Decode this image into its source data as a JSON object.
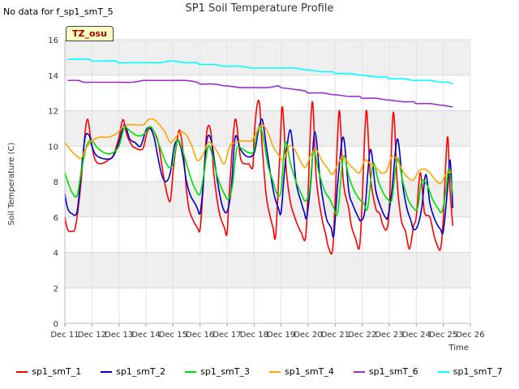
{
  "note": "No data for f_sp1_smT_5",
  "badge": "TZ_osu",
  "chart_data": {
    "type": "line",
    "title": "SP1 Soil Temperature Profile",
    "xlabel": "Time",
    "ylabel": "Soil Temperature (C)",
    "ylim": [
      0,
      16
    ],
    "yticks": [
      0,
      2,
      4,
      6,
      8,
      10,
      12,
      14,
      16
    ],
    "xlim": [
      11,
      26
    ],
    "xticks": [
      11,
      12,
      13,
      14,
      15,
      16,
      17,
      18,
      19,
      20,
      21,
      22,
      23,
      24,
      25,
      26
    ],
    "xtick_labels": [
      "Dec 11",
      "Dec 12",
      "Dec 13",
      "Dec 14",
      "Dec 15",
      "Dec 16",
      "Dec 17",
      "Dec 18",
      "Dec 19",
      "Dec 20",
      "Dec 21",
      "Dec 22",
      "Dec 23",
      "Dec 24",
      "Dec 25",
      "Dec 26"
    ],
    "grid": true,
    "legend_position": "bottom",
    "series": [
      {
        "name": "sp1_smT_1",
        "color": "#ff0000",
        "x": [
          11.0,
          11.1,
          11.25,
          11.4,
          11.6,
          11.75,
          11.85,
          11.95,
          12.1,
          12.3,
          12.6,
          12.8,
          13.0,
          13.15,
          13.3,
          13.5,
          13.6,
          13.75,
          13.9,
          14.05,
          14.2,
          14.4,
          14.5,
          14.6,
          14.75,
          14.9,
          15.0,
          15.1,
          15.25,
          15.4,
          15.5,
          15.6,
          15.75,
          15.9,
          16.0,
          16.1,
          16.25,
          16.4,
          16.5,
          16.65,
          16.75,
          16.9,
          17.0,
          17.1,
          17.3,
          17.5,
          17.7,
          17.8,
          17.95,
          18.0,
          18.1,
          18.2,
          18.3,
          18.45,
          18.6,
          18.7,
          18.8,
          18.95,
          19.05,
          19.2,
          19.35,
          19.5,
          19.65,
          19.75,
          19.9,
          20.0,
          20.15,
          20.3,
          20.5,
          20.65,
          20.75,
          20.9,
          21.0,
          21.15,
          21.3,
          21.5,
          21.6,
          21.75,
          21.9,
          22.0,
          22.15,
          22.3,
          22.5,
          22.65,
          22.75,
          22.9,
          23.0,
          23.15,
          23.3,
          23.45,
          23.6,
          23.75,
          23.9,
          24.0,
          24.15,
          24.3,
          24.5,
          24.65,
          24.75,
          24.9,
          25.0,
          25.15,
          25.25,
          25.35
        ],
        "values": [
          6.0,
          5.3,
          5.2,
          5.5,
          8.0,
          10.8,
          11.5,
          10.5,
          9.3,
          9.0,
          9.2,
          9.5,
          10.5,
          11.5,
          10.6,
          10.0,
          9.9,
          9.8,
          9.9,
          10.8,
          11.0,
          10.5,
          9.8,
          8.8,
          7.5,
          6.9,
          8.5,
          9.8,
          10.9,
          9.3,
          7.5,
          6.4,
          5.8,
          5.4,
          5.3,
          7.3,
          10.8,
          10.8,
          8.6,
          6.8,
          6.0,
          5.4,
          5.1,
          7.8,
          11.5,
          9.3,
          9.0,
          9.0,
          8.8,
          10.5,
          12.2,
          12.4,
          10.0,
          7.2,
          6.0,
          5.4,
          5.0,
          9.5,
          12.2,
          8.5,
          6.8,
          6.0,
          5.4,
          5.1,
          4.8,
          7.5,
          12.5,
          8.2,
          6.0,
          5.0,
          4.3,
          4.1,
          7.0,
          12.0,
          8.0,
          6.5,
          5.5,
          4.8,
          4.3,
          7.0,
          12.0,
          8.3,
          6.5,
          6.2,
          5.6,
          5.3,
          6.5,
          11.9,
          7.8,
          5.8,
          5.2,
          4.2,
          5.5,
          6.0,
          8.5,
          6.3,
          6.0,
          5.0,
          4.5,
          4.2,
          6.0,
          10.5,
          7.5,
          5.5
        ]
      },
      {
        "name": "sp1_smT_2",
        "color": "#0000cc",
        "x": [
          11.0,
          11.1,
          11.25,
          11.45,
          11.6,
          11.75,
          11.9,
          12.0,
          12.15,
          12.4,
          12.7,
          12.85,
          13.0,
          13.2,
          13.4,
          13.6,
          13.8,
          14.0,
          14.15,
          14.3,
          14.45,
          14.6,
          14.75,
          14.9,
          15.05,
          15.2,
          15.35,
          15.5,
          15.65,
          15.8,
          15.9,
          16.0,
          16.1,
          16.25,
          16.4,
          16.55,
          16.7,
          16.85,
          17.0,
          17.15,
          17.3,
          17.5,
          17.75,
          18.0,
          18.15,
          18.3,
          18.45,
          18.6,
          18.75,
          18.9,
          19.0,
          19.15,
          19.35,
          19.55,
          19.75,
          19.85,
          19.95,
          20.1,
          20.25,
          20.45,
          20.6,
          20.7,
          20.85,
          20.95,
          21.1,
          21.3,
          21.5,
          21.65,
          21.85,
          21.95,
          22.1,
          22.3,
          22.5,
          22.7,
          22.85,
          22.95,
          23.1,
          23.3,
          23.5,
          23.65,
          23.8,
          23.9,
          24.05,
          24.2,
          24.35,
          24.5,
          24.65,
          24.8,
          24.9,
          25.0,
          25.15,
          25.25,
          25.35
        ],
        "values": [
          7.3,
          6.5,
          6.2,
          6.3,
          8.5,
          10.5,
          10.6,
          10.0,
          9.5,
          9.3,
          9.3,
          9.6,
          10.2,
          11.2,
          10.4,
          10.2,
          10.0,
          10.9,
          11.0,
          10.5,
          9.3,
          8.3,
          8.0,
          8.5,
          10.0,
          10.3,
          9.5,
          8.0,
          7.2,
          6.8,
          6.5,
          6.2,
          7.5,
          10.3,
          10.4,
          9.0,
          7.5,
          6.5,
          6.3,
          7.5,
          10.5,
          9.8,
          9.4,
          9.6,
          10.8,
          11.5,
          10.0,
          8.5,
          7.2,
          6.5,
          6.3,
          9.0,
          10.9,
          8.0,
          6.8,
          6.3,
          6.0,
          8.0,
          10.8,
          8.0,
          6.5,
          5.8,
          5.4,
          5.0,
          8.0,
          10.5,
          7.5,
          6.7,
          6.0,
          5.8,
          6.4,
          9.8,
          7.5,
          6.5,
          6.0,
          6.0,
          7.5,
          10.4,
          7.8,
          6.5,
          5.8,
          5.3,
          5.5,
          6.5,
          8.4,
          6.8,
          6.0,
          5.5,
          5.3,
          5.2,
          7.5,
          9.2,
          6.5
        ]
      },
      {
        "name": "sp1_smT_3",
        "color": "#00dd00",
        "x": [
          11.0,
          11.15,
          11.3,
          11.45,
          11.6,
          11.8,
          12.0,
          12.2,
          12.5,
          12.75,
          13.0,
          13.2,
          13.45,
          13.65,
          13.85,
          14.0,
          14.15,
          14.3,
          14.5,
          14.7,
          14.85,
          15.0,
          15.15,
          15.3,
          15.5,
          15.7,
          15.85,
          16.0,
          16.15,
          16.3,
          16.45,
          16.6,
          16.75,
          16.9,
          17.05,
          17.2,
          17.35,
          17.5,
          17.7,
          17.9,
          18.0,
          18.15,
          18.3,
          18.5,
          18.7,
          18.85,
          19.0,
          19.15,
          19.35,
          19.55,
          19.75,
          19.9,
          20.05,
          20.2,
          20.4,
          20.6,
          20.8,
          20.95,
          21.1,
          21.3,
          21.5,
          21.7,
          21.9,
          22.05,
          22.2,
          22.4,
          22.6,
          22.8,
          22.95,
          23.1,
          23.3,
          23.5,
          23.7,
          23.9,
          24.05,
          24.2,
          24.4,
          24.6,
          24.8,
          24.95,
          25.1,
          25.2,
          25.35
        ],
        "values": [
          8.5,
          7.8,
          7.3,
          7.2,
          8.5,
          10.0,
          10.3,
          9.9,
          9.6,
          9.6,
          10.0,
          11.0,
          10.8,
          10.6,
          10.6,
          10.8,
          11.1,
          10.8,
          10.0,
          9.2,
          8.8,
          9.0,
          10.3,
          10.0,
          9.0,
          8.0,
          7.5,
          7.3,
          8.5,
          10.0,
          9.5,
          8.5,
          7.8,
          7.3,
          7.0,
          7.8,
          9.8,
          9.9,
          9.7,
          9.6,
          9.8,
          11.0,
          10.8,
          9.0,
          8.0,
          7.3,
          7.5,
          10.2,
          9.0,
          8.0,
          7.3,
          6.9,
          7.5,
          9.7,
          8.5,
          7.5,
          7.0,
          6.5,
          6.3,
          9.4,
          8.3,
          7.5,
          7.0,
          6.8,
          6.5,
          9.0,
          8.0,
          7.3,
          7.0,
          7.0,
          9.3,
          8.0,
          7.0,
          6.5,
          6.5,
          8.0,
          7.8,
          7.0,
          6.5,
          6.3,
          7.5,
          8.7,
          7.3
        ]
      },
      {
        "name": "sp1_smT_4",
        "color": "#ffa500",
        "x": [
          11.0,
          11.2,
          11.4,
          11.6,
          11.75,
          12.0,
          12.3,
          12.6,
          12.9,
          13.1,
          13.3,
          13.6,
          13.9,
          14.1,
          14.3,
          14.5,
          14.7,
          14.9,
          15.1,
          15.3,
          15.5,
          15.7,
          15.9,
          16.1,
          16.3,
          16.5,
          16.7,
          16.9,
          17.1,
          17.3,
          17.6,
          17.9,
          18.1,
          18.3,
          18.5,
          18.7,
          18.9,
          19.1,
          19.3,
          19.5,
          19.7,
          19.9,
          20.1,
          20.3,
          20.5,
          20.7,
          20.9,
          21.1,
          21.3,
          21.5,
          21.7,
          21.9,
          22.1,
          22.3,
          22.5,
          22.7,
          22.9,
          23.1,
          23.3,
          23.5,
          23.7,
          23.9,
          24.1,
          24.3,
          24.5,
          24.7,
          24.9,
          25.1,
          25.35
        ],
        "values": [
          10.2,
          9.8,
          9.5,
          9.3,
          9.8,
          10.3,
          10.5,
          10.5,
          10.7,
          11.0,
          11.2,
          11.2,
          11.2,
          11.5,
          11.5,
          11.2,
          10.8,
          10.2,
          10.5,
          10.8,
          10.6,
          10.0,
          9.2,
          9.5,
          10.2,
          10.0,
          9.5,
          9.0,
          10.0,
          10.2,
          10.3,
          10.3,
          10.8,
          11.2,
          10.8,
          10.0,
          9.5,
          9.2,
          10.0,
          9.8,
          9.2,
          8.8,
          9.5,
          9.8,
          9.2,
          8.8,
          8.4,
          9.0,
          9.4,
          9.0,
          8.7,
          8.5,
          9.2,
          9.0,
          8.8,
          8.5,
          8.6,
          9.4,
          9.2,
          8.6,
          8.2,
          8.1,
          8.6,
          8.7,
          8.5,
          8.1,
          7.9,
          8.4,
          8.6
        ]
      },
      {
        "name": "sp1_smT_6",
        "color": "#9b30d0",
        "x": [
          11.1,
          11.5,
          11.7,
          12.0,
          12.5,
          13.0,
          13.5,
          13.9,
          14.0,
          14.5,
          15.0,
          15.5,
          15.9,
          16.0,
          16.5,
          16.9,
          17.0,
          17.5,
          18.0,
          18.5,
          18.9,
          19.0,
          19.5,
          19.9,
          20.0,
          20.5,
          20.9,
          21.0,
          21.5,
          21.9,
          22.0,
          22.5,
          22.9,
          23.0,
          23.5,
          23.9,
          24.0,
          24.5,
          24.9,
          25.0,
          25.35
        ],
        "values": [
          13.7,
          13.7,
          13.6,
          13.6,
          13.6,
          13.6,
          13.6,
          13.7,
          13.7,
          13.7,
          13.7,
          13.7,
          13.6,
          13.5,
          13.5,
          13.4,
          13.4,
          13.3,
          13.3,
          13.3,
          13.4,
          13.3,
          13.2,
          13.1,
          13.0,
          13.0,
          12.9,
          12.9,
          12.8,
          12.8,
          12.7,
          12.7,
          12.6,
          12.6,
          12.5,
          12.5,
          12.4,
          12.4,
          12.3,
          12.3,
          12.2
        ]
      },
      {
        "name": "sp1_smT_7",
        "color": "#00ffff",
        "x": [
          11.1,
          11.5,
          11.9,
          12.0,
          12.5,
          12.9,
          13.0,
          13.5,
          14.0,
          14.5,
          14.9,
          15.0,
          15.5,
          15.9,
          16.0,
          16.5,
          16.9,
          17.0,
          17.5,
          17.9,
          18.0,
          18.5,
          19.0,
          19.5,
          19.9,
          20.0,
          20.5,
          20.9,
          21.0,
          21.5,
          21.9,
          22.0,
          22.5,
          22.9,
          23.0,
          23.5,
          23.9,
          24.0,
          24.5,
          24.9,
          25.0,
          25.2,
          25.35
        ],
        "values": [
          14.9,
          14.9,
          14.9,
          14.8,
          14.8,
          14.8,
          14.7,
          14.7,
          14.7,
          14.7,
          14.8,
          14.8,
          14.7,
          14.7,
          14.6,
          14.6,
          14.5,
          14.5,
          14.5,
          14.4,
          14.4,
          14.4,
          14.4,
          14.4,
          14.3,
          14.3,
          14.2,
          14.2,
          14.1,
          14.1,
          14.0,
          14.0,
          13.9,
          13.9,
          13.8,
          13.8,
          13.7,
          13.7,
          13.7,
          13.6,
          13.6,
          13.6,
          13.5
        ]
      }
    ]
  }
}
